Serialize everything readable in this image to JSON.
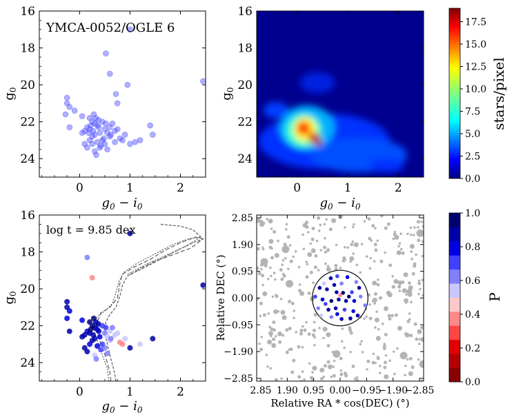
{
  "chart_data": [
    {
      "panel": "top-left",
      "type": "scatter",
      "title_annotation": "YMCA-0052/OGLE 6",
      "xlabel": "g0 - i0",
      "ylabel": "g0",
      "xlim": [
        -0.8,
        2.5
      ],
      "ylim": [
        25,
        16
      ],
      "xticks": [
        0,
        1,
        2
      ],
      "yticks": [
        16,
        18,
        20,
        22,
        24
      ],
      "marker_color": "#4d4dff",
      "points": [
        [
          0.52,
          18.3
        ],
        [
          1.0,
          17.0
        ],
        [
          0.6,
          19.4
        ],
        [
          0.72,
          20.5
        ],
        [
          0.95,
          20.0
        ],
        [
          0.75,
          21.0
        ],
        [
          2.45,
          19.8
        ],
        [
          -0.25,
          20.7
        ],
        [
          -0.25,
          21.0
        ],
        [
          -0.2,
          21.2
        ],
        [
          -0.1,
          21.4
        ],
        [
          -0.28,
          21.6
        ],
        [
          0.05,
          21.7
        ],
        [
          -0.2,
          22.3
        ],
        [
          0.2,
          21.8
        ],
        [
          0.28,
          21.6
        ],
        [
          0.32,
          21.8
        ],
        [
          0.25,
          22.0
        ],
        [
          0.3,
          22.1
        ],
        [
          0.35,
          22.2
        ],
        [
          0.15,
          22.3
        ],
        [
          0.2,
          22.4
        ],
        [
          0.38,
          22.3
        ],
        [
          0.45,
          22.0
        ],
        [
          0.5,
          22.4
        ],
        [
          0.55,
          22.6
        ],
        [
          0.6,
          22.3
        ],
        [
          0.65,
          22.1
        ],
        [
          0.7,
          22.5
        ],
        [
          0.4,
          22.6
        ],
        [
          0.3,
          22.7
        ],
        [
          0.25,
          22.8
        ],
        [
          0.1,
          22.5
        ],
        [
          0.05,
          22.6
        ],
        [
          0.2,
          23.0
        ],
        [
          0.35,
          23.1
        ],
        [
          0.42,
          23.3
        ],
        [
          0.5,
          23.2
        ],
        [
          0.55,
          23.5
        ],
        [
          0.3,
          23.6
        ],
        [
          0.1,
          23.2
        ],
        [
          0.15,
          23.4
        ],
        [
          0.45,
          23.0
        ],
        [
          0.6,
          22.8
        ],
        [
          0.75,
          22.4
        ],
        [
          0.8,
          22.9
        ],
        [
          0.9,
          22.7
        ],
        [
          1.0,
          23.2
        ],
        [
          1.1,
          23.1
        ],
        [
          1.2,
          23.0
        ],
        [
          1.45,
          22.7
        ],
        [
          1.4,
          22.2
        ],
        [
          0.33,
          23.8
        ],
        [
          0.48,
          22.9
        ],
        [
          0.22,
          22.2
        ],
        [
          0.27,
          22.5
        ],
        [
          0.37,
          21.9
        ],
        [
          0.18,
          22.6
        ],
        [
          0.52,
          22.1
        ],
        [
          0.62,
          22.7
        ],
        [
          0.7,
          23.1
        ],
        [
          0.85,
          23.0
        ],
        [
          0.25,
          23.2
        ],
        [
          0.4,
          23.4
        ]
      ]
    },
    {
      "panel": "top-right",
      "type": "heatmap",
      "xlabel": "g0 - i0",
      "ylabel": "g0",
      "xlim": [
        -0.8,
        2.5
      ],
      "ylim": [
        25,
        16
      ],
      "xticks": [
        0,
        1,
        2
      ],
      "yticks": [
        16,
        18,
        20,
        22,
        24
      ],
      "colorbar_label": "stars/pixel",
      "colorbar_ticks": [
        "0.0",
        "2.5",
        "5.0",
        "7.5",
        "10.0",
        "12.5",
        "15.0",
        "17.5"
      ],
      "colorbar_range": [
        0,
        19
      ],
      "peak_location": {
        "x": 0.25,
        "y": 22.6
      },
      "peak_value": 19
    },
    {
      "panel": "bottom-left",
      "type": "scatter",
      "annotation": "log t = 9.85 dex",
      "xlabel": "g0 - i0",
      "ylabel": "g0",
      "xlim": [
        -0.8,
        2.5
      ],
      "ylim": [
        25,
        16
      ],
      "xticks": [
        0,
        1,
        2
      ],
      "yticks": [
        16,
        18,
        20,
        22,
        24
      ],
      "isochrone_color": "#666666",
      "points": [
        [
          0.15,
          18.3,
          0.6
        ],
        [
          0.25,
          19.4,
          0.35
        ],
        [
          1.0,
          17.0,
          0.85
        ],
        [
          2.45,
          19.8,
          0.9
        ],
        [
          -0.25,
          20.7,
          0.9
        ],
        [
          -0.25,
          21.0,
          0.85
        ],
        [
          -0.2,
          21.2,
          0.8
        ],
        [
          -0.25,
          21.6,
          0.75
        ],
        [
          -0.2,
          22.3,
          0.85
        ],
        [
          0.05,
          21.7,
          0.8
        ],
        [
          0.2,
          21.8,
          0.95
        ],
        [
          0.28,
          21.6,
          0.95
        ],
        [
          0.32,
          21.8,
          0.9
        ],
        [
          0.25,
          22.0,
          0.85
        ],
        [
          0.3,
          22.1,
          0.95
        ],
        [
          0.35,
          22.2,
          0.8
        ],
        [
          0.15,
          22.3,
          0.75
        ],
        [
          0.2,
          22.4,
          0.9
        ],
        [
          0.38,
          22.3,
          0.85
        ],
        [
          0.45,
          22.0,
          0.7
        ],
        [
          0.5,
          22.4,
          0.6
        ],
        [
          0.55,
          22.6,
          0.55
        ],
        [
          0.6,
          22.3,
          0.55
        ],
        [
          0.65,
          22.1,
          0.6
        ],
        [
          0.7,
          22.5,
          0.55
        ],
        [
          0.4,
          22.6,
          0.8
        ],
        [
          0.3,
          22.7,
          0.9
        ],
        [
          0.25,
          22.8,
          0.85
        ],
        [
          0.1,
          22.5,
          0.9
        ],
        [
          0.05,
          22.6,
          0.85
        ],
        [
          0.2,
          23.0,
          0.8
        ],
        [
          0.35,
          23.1,
          0.75
        ],
        [
          0.42,
          23.3,
          0.7
        ],
        [
          0.5,
          23.2,
          0.65
        ],
        [
          0.55,
          23.5,
          0.6
        ],
        [
          0.3,
          23.6,
          0.55
        ],
        [
          0.1,
          23.2,
          0.9
        ],
        [
          0.15,
          23.4,
          0.85
        ],
        [
          0.45,
          23.0,
          0.7
        ],
        [
          0.6,
          22.8,
          0.55
        ],
        [
          0.8,
          22.9,
          0.35
        ],
        [
          0.9,
          22.7,
          0.55
        ],
        [
          1.0,
          23.2,
          0.85
        ],
        [
          1.2,
          23.0,
          0.55
        ],
        [
          1.45,
          22.7,
          0.85
        ],
        [
          0.33,
          23.8,
          0.6
        ],
        [
          0.75,
          22.4,
          0.55
        ],
        [
          0.85,
          23.0,
          0.4
        ],
        [
          0.62,
          22.7,
          0.6
        ],
        [
          0.22,
          22.2,
          0.95
        ],
        [
          0.27,
          22.5,
          0.9
        ],
        [
          0.37,
          21.9,
          0.85
        ],
        [
          0.52,
          22.1,
          0.7
        ]
      ],
      "isochrones": [
        [
          [
            0.62,
            25.0
          ],
          [
            0.6,
            24.5
          ],
          [
            0.55,
            24.0
          ],
          [
            0.48,
            23.4
          ],
          [
            0.4,
            22.8
          ],
          [
            0.35,
            22.3
          ],
          [
            0.35,
            21.8
          ],
          [
            0.42,
            21.3
          ],
          [
            0.6,
            21.0
          ],
          [
            0.75,
            20.5
          ],
          [
            0.8,
            19.7
          ],
          [
            0.85,
            19.2
          ],
          [
            1.1,
            18.8
          ],
          [
            1.4,
            18.4
          ],
          [
            1.7,
            17.9
          ],
          [
            2.0,
            17.5
          ],
          [
            2.3,
            17.2
          ],
          [
            2.45,
            17.3
          ],
          [
            2.2,
            17.8
          ],
          [
            1.9,
            18.1
          ],
          [
            1.5,
            18.5
          ],
          [
            1.2,
            18.9
          ],
          [
            0.95,
            19.3
          ]
        ],
        [
          [
            0.58,
            25.0
          ],
          [
            0.55,
            24.3
          ],
          [
            0.45,
            23.6
          ],
          [
            0.38,
            23.0
          ],
          [
            0.3,
            22.4
          ],
          [
            0.28,
            21.9
          ],
          [
            0.35,
            21.5
          ],
          [
            0.5,
            21.2
          ],
          [
            0.65,
            20.8
          ],
          [
            0.72,
            20.2
          ],
          [
            0.78,
            19.6
          ],
          [
            0.88,
            19.1
          ],
          [
            1.15,
            18.6
          ],
          [
            1.5,
            18.1
          ],
          [
            1.85,
            17.6
          ],
          [
            2.15,
            17.3
          ],
          [
            2.4,
            17.2
          ],
          [
            2.1,
            17.7
          ],
          [
            1.7,
            18.2
          ],
          [
            1.3,
            18.7
          ],
          [
            0.95,
            19.2
          ]
        ],
        [
          [
            0.72,
            25.0
          ],
          [
            0.68,
            24.4
          ],
          [
            0.62,
            23.8
          ],
          [
            0.55,
            23.0
          ],
          [
            0.5,
            22.4
          ],
          [
            0.52,
            21.8
          ],
          [
            0.6,
            21.4
          ],
          [
            0.72,
            21.0
          ],
          [
            0.8,
            20.4
          ],
          [
            0.85,
            19.8
          ],
          [
            0.95,
            19.3
          ],
          [
            1.25,
            18.9
          ],
          [
            1.6,
            18.4
          ],
          [
            1.95,
            17.9
          ],
          [
            2.25,
            17.5
          ],
          [
            2.45,
            17.3
          ],
          [
            2.25,
            16.8
          ],
          [
            2.0,
            16.6
          ],
          [
            1.6,
            16.5
          ]
        ]
      ]
    },
    {
      "panel": "bottom-right",
      "type": "scatter",
      "xlabel": "Relative RA * cos(DEC) (°)",
      "ylabel": "Relative DEC (°)",
      "xlim": [
        2.85,
        -2.85
      ],
      "ylim": [
        -2.85,
        2.85
      ],
      "xticks": [
        "2.85",
        "1.90",
        "0.95",
        "0.00",
        "−0.95",
        "−1.90",
        "−2.85"
      ],
      "yticks": [
        "2.85",
        "1.90",
        "0.95",
        "0.00",
        "−0.95",
        "−1.90",
        "−2.85"
      ],
      "circle_radius_deg": 0.95,
      "colorbar_label": "P",
      "colorbar_ticks": [
        "0.0",
        "0.2",
        "0.4",
        "0.6",
        "0.8",
        "1.0"
      ],
      "colorbar_colors": [
        "#8b0000",
        "#b50000",
        "#e00000",
        "#ff4444",
        "#ff8888",
        "#ffc8c8",
        "#c8c8ff",
        "#8080ff",
        "#4040ff",
        "#0000e0",
        "#0000a8",
        "#000070"
      ],
      "background_color": "#b4b4b4",
      "background_points_count": 420,
      "members": [
        [
          0.32,
          0.68,
          0.85
        ],
        [
          0.1,
          0.75,
          0.7
        ],
        [
          -0.25,
          0.72,
          0.8
        ],
        [
          -0.55,
          0.55,
          0.6
        ],
        [
          0.7,
          0.35,
          0.9
        ],
        [
          0.45,
          0.3,
          0.85
        ],
        [
          0.12,
          0.2,
          0.9
        ],
        [
          -0.1,
          0.18,
          0.95
        ],
        [
          -0.4,
          0.2,
          0.7
        ],
        [
          -0.7,
          0.05,
          0.6
        ],
        [
          0.6,
          -0.05,
          0.8
        ],
        [
          0.3,
          -0.1,
          0.95
        ],
        [
          0.05,
          -0.05,
          0.9
        ],
        [
          -0.2,
          -0.1,
          0.85
        ],
        [
          -0.48,
          -0.1,
          0.75
        ],
        [
          0.75,
          -0.35,
          0.6
        ],
        [
          0.4,
          -0.4,
          0.85
        ],
        [
          0.15,
          -0.35,
          0.9
        ],
        [
          -0.15,
          -0.4,
          0.7
        ],
        [
          -0.45,
          -0.45,
          0.8
        ],
        [
          0.3,
          -0.65,
          0.6
        ],
        [
          -0.05,
          -0.72,
          0.9
        ],
        [
          -0.35,
          -0.7,
          0.85
        ],
        [
          0.55,
          0.5,
          0.55
        ],
        [
          -0.65,
          0.35,
          0.9
        ],
        [
          0.85,
          0.05,
          0.7
        ],
        [
          -0.85,
          -0.25,
          0.6
        ],
        [
          0.2,
          0.45,
          0.85
        ],
        [
          -0.05,
          0.5,
          0.65
        ],
        [
          0.5,
          -0.2,
          0.7
        ],
        [
          -0.3,
          0.05,
          0.95
        ],
        [
          0.0,
          0.1,
          0.35
        ],
        [
          0.65,
          -0.6,
          0.55
        ],
        [
          -0.6,
          -0.6,
          0.85
        ],
        [
          0.1,
          -0.55,
          0.8
        ]
      ]
    }
  ]
}
